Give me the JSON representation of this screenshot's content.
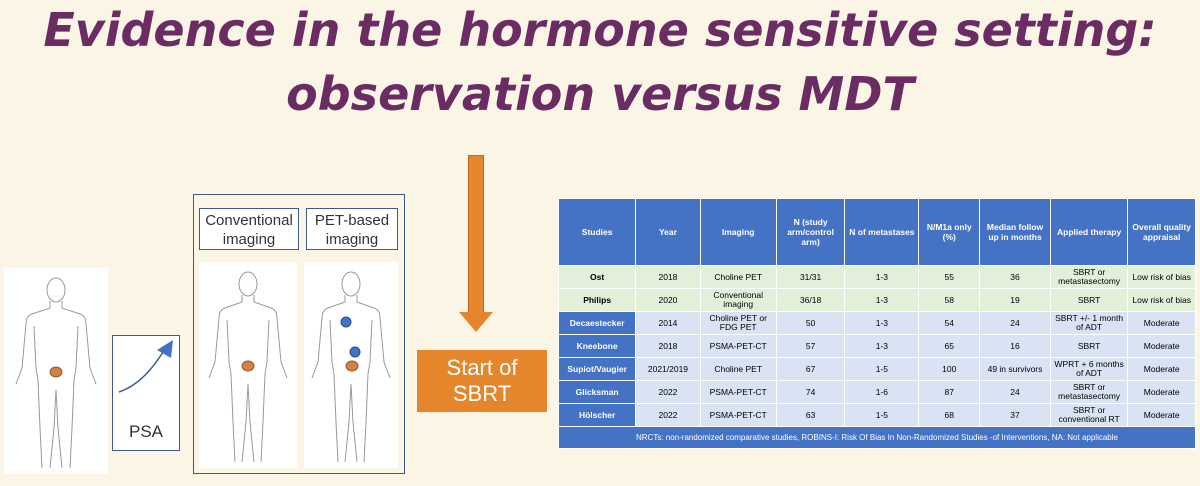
{
  "title": {
    "line1": "Evidence in the hormone sensitive setting:",
    "line2": "observation versus MDT"
  },
  "figure": {
    "psa_label": "PSA",
    "conventional_label": "Conventional imaging",
    "pet_label": "PET-based imaging"
  },
  "sbrt": {
    "line1": "Start of",
    "line2": "SBRT"
  },
  "table": {
    "headers": [
      "Studies",
      "Year",
      "Imaging",
      "N (study arm/control arm)",
      "N of metastases",
      "N/M1a only (%)",
      "Median follow up in months",
      "Applied therapy",
      "Overall quality appraisal"
    ],
    "rows": [
      {
        "style": "green",
        "cells": [
          "Ost",
          "2018",
          "Choline PET",
          "31/31",
          "1-3",
          "55",
          "36",
          "SBRT or metastasectomy",
          "Low risk of bias"
        ]
      },
      {
        "style": "green",
        "cells": [
          "Philips",
          "2020",
          "Conventional imaging",
          "36/18",
          "1-3",
          "58",
          "19",
          "SBRT",
          "Low risk of bias"
        ]
      },
      {
        "style": "blue",
        "cells": [
          "Decaestecker",
          "2014",
          "Choline PET or FDG PET",
          "50",
          "1-3",
          "54",
          "24",
          "SBRT +/- 1 month of ADT",
          "Moderate"
        ]
      },
      {
        "style": "blue",
        "cells": [
          "Kneebone",
          "2018",
          "PSMA-PET-CT",
          "57",
          "1-3",
          "65",
          "16",
          "SBRT",
          "Moderate"
        ]
      },
      {
        "style": "blue",
        "cells": [
          "Supiot/Vaugier",
          "2021/2019",
          "Choline PET",
          "67",
          "1-5",
          "100",
          "49 in survivors",
          "WPRT + 6 months of ADT",
          "Moderate"
        ]
      },
      {
        "style": "blue",
        "cells": [
          "Glicksman",
          "2022",
          "PSMA-PET-CT",
          "74",
          "1-6",
          "87",
          "24",
          "SBRT or metastasectomy",
          "Moderate"
        ]
      },
      {
        "style": "blue",
        "cells": [
          "Hölscher",
          "2022",
          "PSMA-PET-CT",
          "63",
          "1-5",
          "68",
          "37",
          "SBRT or conventional RT",
          "Moderate"
        ]
      }
    ],
    "footnote": "NRCTs: non-randomized comparative studies, ROBINS-I: Risk Of Bias In Non-Randomized Studies -of Interventions, NA: Not applicable"
  },
  "colors": {
    "title": "#6b2c63",
    "accent_orange": "#e6862c",
    "table_header": "#4472c4"
  }
}
